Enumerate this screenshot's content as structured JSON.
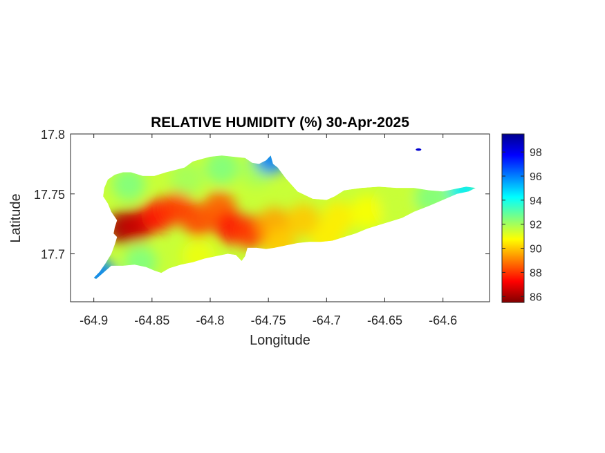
{
  "chart_data": {
    "type": "heatmap",
    "title": "RELATIVE HUMIDITY (%) 30-Apr-2025",
    "xlabel": "Longitude",
    "ylabel": "Latitude",
    "xlim": [
      -64.92,
      -64.56
    ],
    "ylim": [
      17.66,
      17.8
    ],
    "x_ticks": [
      -64.9,
      -64.85,
      -64.8,
      -64.75,
      -64.7,
      -64.65,
      -64.6
    ],
    "x_tick_labels": [
      "-64.9",
      "-64.85",
      "-64.8",
      "-64.75",
      "-64.7",
      "-64.65",
      "-64.6"
    ],
    "y_ticks": [
      17.7,
      17.75,
      17.8
    ],
    "y_tick_labels": [
      "17.7",
      "17.75",
      "17.8"
    ],
    "grid": false,
    "colorbar": {
      "colormap": "jet",
      "range": [
        85.5,
        99.5
      ],
      "ticks": [
        86,
        88,
        90,
        92,
        94,
        96,
        98
      ],
      "tick_labels": [
        "86",
        "88",
        "90",
        "92",
        "94",
        "96",
        "98"
      ]
    },
    "land_outline": [
      [
        -64.898,
        17.679
      ],
      [
        -64.892,
        17.684
      ],
      [
        -64.885,
        17.69
      ],
      [
        -64.875,
        17.69
      ],
      [
        -64.865,
        17.691
      ],
      [
        -64.855,
        17.689
      ],
      [
        -64.848,
        17.686
      ],
      [
        -64.842,
        17.684
      ],
      [
        -64.835,
        17.688
      ],
      [
        -64.825,
        17.691
      ],
      [
        -64.815,
        17.693
      ],
      [
        -64.805,
        17.696
      ],
      [
        -64.795,
        17.698
      ],
      [
        -64.785,
        17.7
      ],
      [
        -64.778,
        17.699
      ],
      [
        -64.773,
        17.694
      ],
      [
        -64.77,
        17.698
      ],
      [
        -64.768,
        17.705
      ],
      [
        -64.76,
        17.705
      ],
      [
        -64.752,
        17.704
      ],
      [
        -64.745,
        17.705
      ],
      [
        -64.735,
        17.707
      ],
      [
        -64.725,
        17.709
      ],
      [
        -64.715,
        17.71
      ],
      [
        -64.705,
        17.71
      ],
      [
        -64.695,
        17.711
      ],
      [
        -64.685,
        17.714
      ],
      [
        -64.675,
        17.717
      ],
      [
        -64.665,
        17.721
      ],
      [
        -64.655,
        17.724
      ],
      [
        -64.645,
        17.727
      ],
      [
        -64.635,
        17.73
      ],
      [
        -64.625,
        17.735
      ],
      [
        -64.612,
        17.74
      ],
      [
        -64.6,
        17.745
      ],
      [
        -64.588,
        17.75
      ],
      [
        -64.578,
        17.752
      ],
      [
        -64.572,
        17.755
      ],
      [
        -64.58,
        17.756
      ],
      [
        -64.59,
        17.754
      ],
      [
        -64.6,
        17.752
      ],
      [
        -64.612,
        17.753
      ],
      [
        -64.625,
        17.755
      ],
      [
        -64.64,
        17.755
      ],
      [
        -64.655,
        17.756
      ],
      [
        -64.67,
        17.755
      ],
      [
        -64.685,
        17.753
      ],
      [
        -64.693,
        17.748
      ],
      [
        -64.7,
        17.745
      ],
      [
        -64.712,
        17.746
      ],
      [
        -64.725,
        17.752
      ],
      [
        -64.735,
        17.763
      ],
      [
        -64.742,
        17.772
      ],
      [
        -64.746,
        17.775
      ],
      [
        -64.748,
        17.782
      ],
      [
        -64.752,
        17.778
      ],
      [
        -64.758,
        17.775
      ],
      [
        -64.764,
        17.776
      ],
      [
        -64.77,
        17.78
      ],
      [
        -64.78,
        17.781
      ],
      [
        -64.79,
        17.782
      ],
      [
        -64.8,
        17.781
      ],
      [
        -64.808,
        17.779
      ],
      [
        -64.815,
        17.777
      ],
      [
        -64.822,
        17.772
      ],
      [
        -64.83,
        17.77
      ],
      [
        -64.838,
        17.768
      ],
      [
        -64.848,
        17.765
      ],
      [
        -64.858,
        17.765
      ],
      [
        -64.868,
        17.768
      ],
      [
        -64.875,
        17.768
      ],
      [
        -64.882,
        17.766
      ],
      [
        -64.888,
        17.762
      ],
      [
        -64.891,
        17.755
      ],
      [
        -64.892,
        17.748
      ],
      [
        -64.888,
        17.742
      ],
      [
        -64.885,
        17.735
      ],
      [
        -64.88,
        17.728
      ],
      [
        -64.882,
        17.722
      ],
      [
        -64.883,
        17.717
      ],
      [
        -64.88,
        17.714
      ],
      [
        -64.882,
        17.708
      ],
      [
        -64.885,
        17.7
      ],
      [
        -64.89,
        17.692
      ],
      [
        -64.895,
        17.685
      ],
      [
        -64.9,
        17.68
      ]
    ],
    "hotspots": [
      {
        "x": -64.875,
        "y": 17.722,
        "value": 86.0
      },
      {
        "x": -64.862,
        "y": 17.724,
        "value": 86.5
      },
      {
        "x": -64.845,
        "y": 17.732,
        "value": 87.5
      },
      {
        "x": -64.828,
        "y": 17.738,
        "value": 88.0
      },
      {
        "x": -64.81,
        "y": 17.728,
        "value": 88.2
      },
      {
        "x": -64.792,
        "y": 17.738,
        "value": 88.5
      },
      {
        "x": -64.782,
        "y": 17.722,
        "value": 87.5
      },
      {
        "x": -64.765,
        "y": 17.718,
        "value": 88.0
      },
      {
        "x": -64.745,
        "y": 17.725,
        "value": 89.5
      },
      {
        "x": -64.72,
        "y": 17.728,
        "value": 90.0
      },
      {
        "x": -64.69,
        "y": 17.73,
        "value": 90.5
      },
      {
        "x": -64.665,
        "y": 17.735,
        "value": 90.8
      },
      {
        "x": -64.64,
        "y": 17.74,
        "value": 91.5
      },
      {
        "x": -64.61,
        "y": 17.747,
        "value": 92.5
      },
      {
        "x": -64.582,
        "y": 17.753,
        "value": 94.5
      },
      {
        "x": -64.87,
        "y": 17.758,
        "value": 92.5
      },
      {
        "x": -64.82,
        "y": 17.763,
        "value": 92.0
      },
      {
        "x": -64.79,
        "y": 17.772,
        "value": 92.5
      },
      {
        "x": -64.76,
        "y": 17.77,
        "value": 92.0
      },
      {
        "x": -64.748,
        "y": 17.78,
        "value": 96.0
      },
      {
        "x": -64.895,
        "y": 17.682,
        "value": 96.0
      },
      {
        "x": -64.86,
        "y": 17.693,
        "value": 92.5
      },
      {
        "x": -64.81,
        "y": 17.698,
        "value": 91.0
      },
      {
        "x": -64.74,
        "y": 17.708,
        "value": 90.0
      },
      {
        "x": -64.7,
        "y": 17.712,
        "value": 90.5
      }
    ],
    "offshore_islet": {
      "x": -64.621,
      "y": 17.787,
      "value": 98.5
    }
  }
}
